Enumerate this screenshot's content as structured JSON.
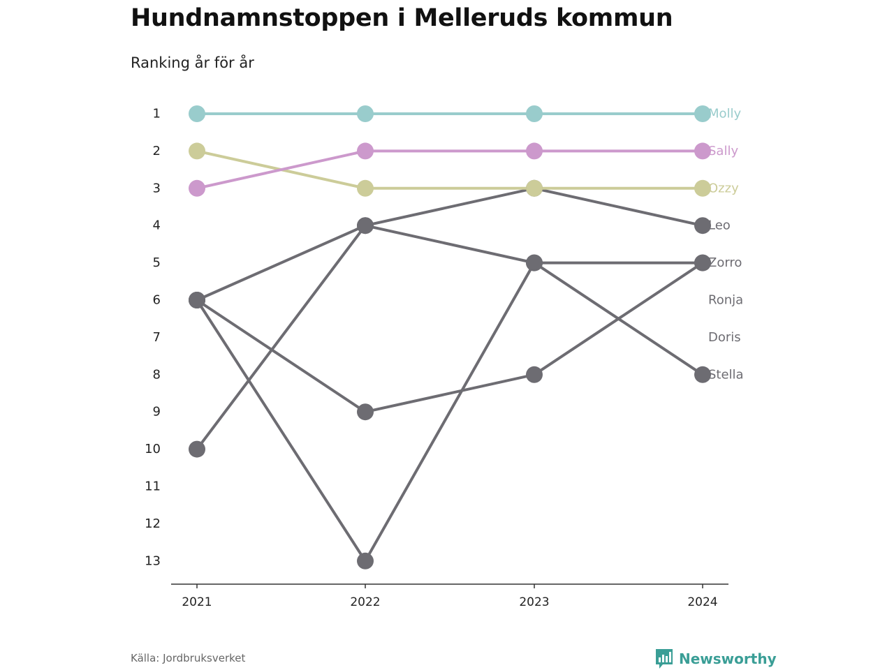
{
  "title": "Hundnamnstoppen i Melleruds kommun",
  "subtitle": "Ranking år för år",
  "source": "Källa: Jordbruksverket",
  "brand": {
    "name": "Newsworthy",
    "icon": "newsworthy-logo-icon",
    "color": "#3a9e96"
  },
  "chart_data": {
    "type": "line",
    "x": [
      "2021",
      "2022",
      "2023",
      "2024"
    ],
    "y_ticks": [
      "1",
      "2",
      "3",
      "4",
      "5",
      "6",
      "7",
      "8",
      "9",
      "10",
      "11",
      "12",
      "13"
    ],
    "ylim": [
      1,
      13
    ],
    "y_reversed": true,
    "grid": false,
    "series": [
      {
        "name": "Stella",
        "color": "#6d6c72",
        "values": [
          6,
          4,
          5,
          8
        ]
      },
      {
        "name": "Zorro",
        "color": "#6d6c72",
        "values": [
          6,
          9,
          8,
          5
        ]
      },
      {
        "name": "Leo",
        "color": "#6d6c72",
        "values": [
          10,
          4,
          3,
          4
        ]
      },
      {
        "name": "Ronja",
        "color": "#6d6c72",
        "values": [
          6,
          13,
          5,
          5
        ]
      },
      {
        "name": "Doris",
        "color": "#6d6c72",
        "values": [
          null,
          null,
          null,
          null
        ]
      },
      {
        "name": "Ozzy",
        "color": "#cccc99",
        "values": [
          2,
          3,
          3,
          3
        ]
      },
      {
        "name": "Sally",
        "color": "#cc99cc",
        "values": [
          3,
          2,
          2,
          2
        ]
      },
      {
        "name": "Molly",
        "color": "#99cccc",
        "values": [
          1,
          1,
          1,
          1
        ]
      }
    ],
    "end_labels": [
      {
        "name": "Molly",
        "rank": 1,
        "color": "#99cccc"
      },
      {
        "name": "Sally",
        "rank": 2,
        "color": "#cc99cc"
      },
      {
        "name": "Ozzy",
        "rank": 3,
        "color": "#cccc99"
      },
      {
        "name": "Leo",
        "rank": 4,
        "color": "#6d6c72"
      },
      {
        "name": "Zorro",
        "rank": 5,
        "color": "#6d6c72"
      },
      {
        "name": "Ronja",
        "rank": 6,
        "color": "#6d6c72"
      },
      {
        "name": "Doris",
        "rank": 7,
        "color": "#6d6c72"
      },
      {
        "name": "Stella",
        "rank": 8,
        "color": "#6d6c72"
      }
    ]
  }
}
